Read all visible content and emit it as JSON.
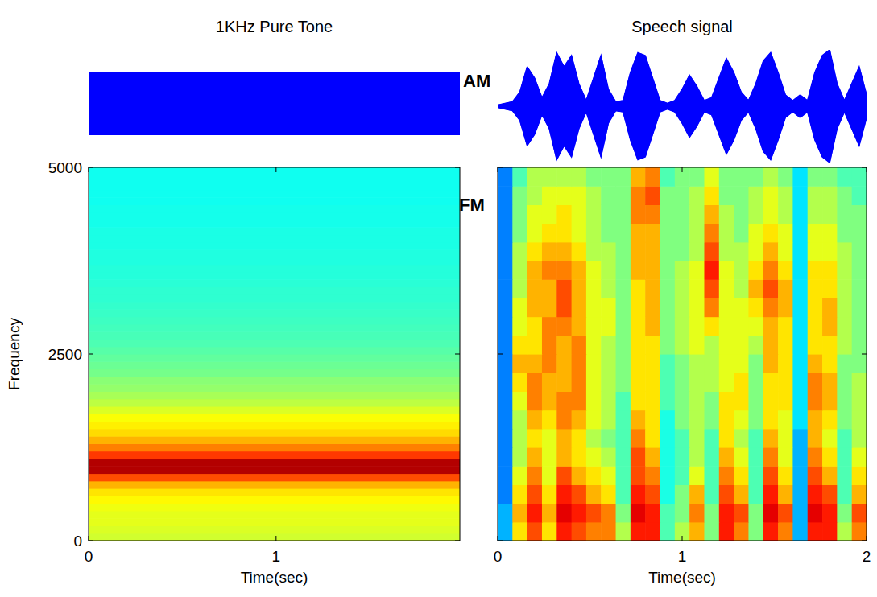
{
  "chart_data": [
    {
      "type": "area",
      "title": "1KHz Pure Tone",
      "x": [
        0,
        1.98
      ],
      "values": [
        1,
        1
      ],
      "xlim": [
        0,
        1.98
      ],
      "ylim": [
        -1,
        1
      ],
      "color": "#0000ff",
      "tick_labels": false
    },
    {
      "type": "heatmap",
      "x": [
        0,
        1.98
      ],
      "y": [
        0,
        100,
        200,
        300,
        400,
        500,
        600,
        700,
        800,
        900,
        1000,
        1100,
        1200,
        1300,
        1400,
        1500,
        1600,
        1700,
        1800,
        1900,
        2000,
        2100,
        2200,
        2300,
        2400,
        2500,
        2600,
        2700,
        2800,
        2900,
        3000,
        3100,
        3200,
        3300,
        3400,
        3500,
        3600,
        3700,
        3800,
        3900,
        4000,
        4100,
        4200,
        4300,
        4400,
        4500,
        4600,
        4700,
        4800,
        4900,
        5000
      ],
      "cells": [
        [
          5.8
        ],
        [
          5.9
        ],
        [
          6.0
        ],
        [
          6.0
        ],
        [
          6.1
        ],
        [
          6.3
        ],
        [
          6.5
        ],
        [
          7.0
        ],
        [
          8.0
        ],
        [
          9.5
        ],
        [
          9.5
        ],
        [
          8.2
        ],
        [
          7.5
        ],
        [
          7.0
        ],
        [
          6.6
        ],
        [
          6.4
        ],
        [
          6.2
        ],
        [
          5.9
        ],
        [
          5.6
        ],
        [
          5.4
        ],
        [
          5.2
        ],
        [
          5.1
        ],
        [
          4.9
        ],
        [
          4.8
        ],
        [
          4.7
        ],
        [
          4.6
        ],
        [
          4.5
        ],
        [
          4.45
        ],
        [
          4.4
        ],
        [
          4.35
        ],
        [
          4.3
        ],
        [
          4.25
        ],
        [
          4.2
        ],
        [
          4.2
        ],
        [
          4.15
        ],
        [
          4.1
        ],
        [
          4.1
        ],
        [
          4.05
        ],
        [
          4.05
        ],
        [
          4.0
        ],
        [
          4.0
        ],
        [
          4.0
        ],
        [
          3.95
        ],
        [
          3.95
        ],
        [
          3.95
        ],
        [
          3.9
        ],
        [
          3.9
        ],
        [
          3.9
        ],
        [
          3.9
        ],
        [
          3.9
        ]
      ],
      "clim": [
        0,
        10
      ],
      "xlim": [
        0,
        1.98
      ],
      "ylim": [
        0,
        5000
      ],
      "xticks": [
        0,
        1
      ],
      "yticks": [
        0,
        2500,
        5000
      ],
      "xlabel": "Time(sec)",
      "ylabel": "Frequency"
    },
    {
      "type": "area",
      "title": "Speech signal",
      "annotations": [
        "AM"
      ],
      "x": [
        0,
        0.04,
        0.08,
        0.12,
        0.16,
        0.2,
        0.24,
        0.28,
        0.32,
        0.36,
        0.4,
        0.44,
        0.48,
        0.52,
        0.56,
        0.6,
        0.64,
        0.68,
        0.72,
        0.76,
        0.8,
        0.84,
        0.88,
        0.92,
        0.96,
        1.0,
        1.04,
        1.08,
        1.12,
        1.16,
        1.2,
        1.24,
        1.28,
        1.32,
        1.36,
        1.4,
        1.44,
        1.48,
        1.52,
        1.56,
        1.6,
        1.64,
        1.68,
        1.72,
        1.76,
        1.8,
        1.84,
        1.88,
        1.92,
        1.96,
        2.0
      ],
      "values": [
        0.02,
        0.05,
        0.08,
        0.25,
        0.7,
        0.5,
        0.15,
        0.4,
        0.95,
        0.7,
        0.9,
        0.4,
        0.1,
        0.5,
        0.9,
        0.3,
        0.08,
        0.1,
        0.6,
        0.95,
        0.9,
        0.5,
        0.1,
        0.05,
        0.1,
        0.3,
        0.55,
        0.35,
        0.1,
        0.15,
        0.5,
        0.85,
        0.6,
        0.25,
        0.1,
        0.4,
        0.8,
        0.95,
        0.6,
        0.2,
        0.1,
        0.2,
        0.1,
        0.6,
        0.9,
        1.0,
        0.4,
        0.1,
        0.4,
        0.7,
        0.2
      ],
      "xlim": [
        0,
        2
      ],
      "ylim": [
        -1,
        1
      ],
      "color": "#0000ff",
      "tick_labels": false
    },
    {
      "type": "heatmap",
      "annotations": [
        "FM"
      ],
      "x": [
        0,
        0.08,
        0.16,
        0.24,
        0.32,
        0.4,
        0.48,
        0.56,
        0.64,
        0.72,
        0.8,
        0.88,
        0.96,
        1.04,
        1.12,
        1.2,
        1.28,
        1.36,
        1.44,
        1.52,
        1.6,
        1.68,
        1.76,
        1.84,
        1.92,
        2
      ],
      "y": [
        0,
        250,
        500,
        750,
        1000,
        1250,
        1500,
        1750,
        2000,
        2250,
        2500,
        2750,
        3000,
        3250,
        3500,
        3750,
        4000,
        4250,
        4500,
        4750,
        5000
      ],
      "cells": [
        [
          3,
          6.5,
          8,
          6.5,
          8.5,
          8,
          7.5,
          7.5,
          5.5,
          8.5,
          8.5,
          4.5,
          5.5,
          7,
          5,
          8.5,
          7.5,
          5,
          8.5,
          7.5,
          3,
          8.5,
          8.5,
          5.5,
          7.5
        ],
        [
          3,
          7,
          8.5,
          7,
          9,
          8.5,
          8,
          7.5,
          5,
          9,
          8.5,
          4.5,
          5,
          7.5,
          5,
          8.5,
          8,
          5,
          9,
          8,
          3,
          9,
          8.5,
          5,
          8
        ],
        [
          2.5,
          6.5,
          8,
          6.5,
          8.5,
          8,
          7,
          6.5,
          4.5,
          8.5,
          8,
          4,
          5,
          7,
          4.5,
          8,
          7,
          4.5,
          8.5,
          7,
          3,
          8.5,
          8,
          4.5,
          7
        ],
        [
          2.5,
          6,
          7.5,
          6,
          8,
          7,
          6.5,
          6,
          4.5,
          8,
          7.5,
          4,
          4.5,
          6,
          4.5,
          7.5,
          6.5,
          4.5,
          8,
          6.5,
          3,
          8,
          7,
          4.5,
          6.5
        ],
        [
          2.5,
          5.5,
          7,
          6,
          7,
          6.5,
          6,
          5.5,
          4.5,
          8,
          7,
          4,
          4.5,
          5.5,
          4.5,
          7,
          6,
          4.5,
          7.5,
          6,
          3,
          7.5,
          6.5,
          4.5,
          6
        ],
        [
          2.5,
          5.5,
          6.5,
          6,
          7,
          6.5,
          5.5,
          5,
          4.5,
          7.5,
          6.5,
          4,
          4.5,
          5.5,
          4.5,
          6.5,
          5.5,
          4.5,
          7,
          6,
          3,
          7,
          6,
          4.5,
          5.5
        ],
        [
          2.5,
          5.5,
          7,
          6.5,
          7.5,
          7,
          6,
          5.5,
          4.5,
          7,
          6.5,
          4,
          5,
          5.5,
          5,
          6.5,
          6,
          5,
          6.5,
          6,
          3.5,
          7,
          6.5,
          5,
          5.5
        ],
        [
          2.5,
          6,
          7.5,
          7,
          7.5,
          7.5,
          6,
          5.5,
          4.5,
          6.5,
          6.5,
          4.5,
          5,
          5.5,
          5,
          6.5,
          6.5,
          5,
          6.5,
          6.5,
          3.5,
          7.5,
          7,
          5,
          5.5
        ],
        [
          2.5,
          6.5,
          7.5,
          7,
          7,
          7.5,
          6,
          5.5,
          5,
          6.5,
          6.5,
          4.5,
          5,
          5.5,
          5.5,
          6,
          6.5,
          5,
          6.5,
          6.5,
          3.5,
          7.5,
          7,
          5,
          5.5
        ],
        [
          2.5,
          7,
          7,
          7.5,
          7,
          7.5,
          6,
          5.5,
          5,
          6.5,
          6.5,
          4.5,
          5,
          5.5,
          5.5,
          6,
          6,
          5,
          7,
          6.5,
          3.5,
          7,
          6.5,
          5,
          5
        ],
        [
          2.5,
          6.5,
          6.5,
          7.5,
          7,
          7.5,
          6,
          5.5,
          5,
          6.5,
          6.5,
          5,
          5.5,
          6,
          5.5,
          6,
          6,
          5.5,
          7,
          6.5,
          3.5,
          6.5,
          6.5,
          5.5,
          5
        ],
        [
          2.5,
          6,
          6.5,
          7.5,
          7.5,
          7,
          6,
          6,
          5,
          6.5,
          7,
          5,
          5.5,
          6,
          6.5,
          6,
          6,
          6,
          7,
          6.5,
          3.5,
          6.5,
          7,
          5.5,
          5
        ],
        [
          2.5,
          6,
          7,
          7,
          8,
          7,
          6,
          6,
          5,
          6.5,
          7,
          5,
          5.5,
          6,
          7.5,
          6,
          6,
          6.5,
          7.5,
          7,
          3.5,
          6.5,
          7,
          5.5,
          5
        ],
        [
          2.5,
          5.5,
          7,
          7,
          8,
          7,
          6,
          5.5,
          5,
          6.5,
          7,
          5,
          5.5,
          6,
          8,
          6,
          5.5,
          7,
          8,
          7,
          3.5,
          6.5,
          6.5,
          5.5,
          5
        ],
        [
          2.5,
          5.5,
          7,
          7.5,
          7.5,
          7,
          6,
          5.5,
          5,
          7,
          7,
          5,
          5.5,
          6,
          8.5,
          6,
          5.5,
          6.5,
          7.5,
          6.5,
          3.5,
          6.5,
          6.5,
          5.5,
          5
        ],
        [
          2.5,
          5.5,
          6.5,
          7,
          7,
          6.5,
          5.5,
          5.5,
          5,
          7,
          7,
          5,
          5,
          5.5,
          8,
          5.5,
          5.5,
          6,
          7,
          6,
          3.5,
          6,
          6,
          5.5,
          5
        ],
        [
          2.5,
          5,
          6,
          6.5,
          6.5,
          6,
          5.5,
          5,
          5,
          7,
          7,
          5,
          5,
          5.5,
          7.5,
          5.5,
          5,
          6,
          6.5,
          6,
          3.5,
          6,
          6,
          5,
          5
        ],
        [
          2.5,
          5,
          6,
          6,
          6.5,
          6,
          5.5,
          5,
          5,
          7.5,
          7.5,
          5,
          5,
          5.5,
          7,
          5.5,
          5,
          5.5,
          6,
          5.5,
          3.5,
          5.5,
          5.5,
          5,
          5
        ],
        [
          2.5,
          5,
          5.5,
          6,
          6,
          6,
          5.5,
          5,
          5,
          7.5,
          8,
          5,
          5,
          5.5,
          6.5,
          5,
          5,
          5.5,
          6,
          5.5,
          3.5,
          5.5,
          5.5,
          5,
          4.5
        ],
        [
          2.5,
          4.5,
          5.5,
          5.5,
          5.5,
          5.5,
          5,
          5,
          5,
          7,
          7.5,
          4.5,
          5,
          5,
          6,
          5,
          5,
          5,
          5.5,
          5,
          3.5,
          5,
          5,
          4.5,
          4.5
        ]
      ],
      "clim": [
        0,
        10
      ],
      "xlim": [
        0,
        2
      ],
      "ylim": [
        0,
        5000
      ],
      "xticks": [
        0,
        1,
        2
      ],
      "yticks": [
        0,
        2500,
        5000
      ],
      "xlabel": "Time(sec)",
      "tick_labels": "x"
    }
  ]
}
